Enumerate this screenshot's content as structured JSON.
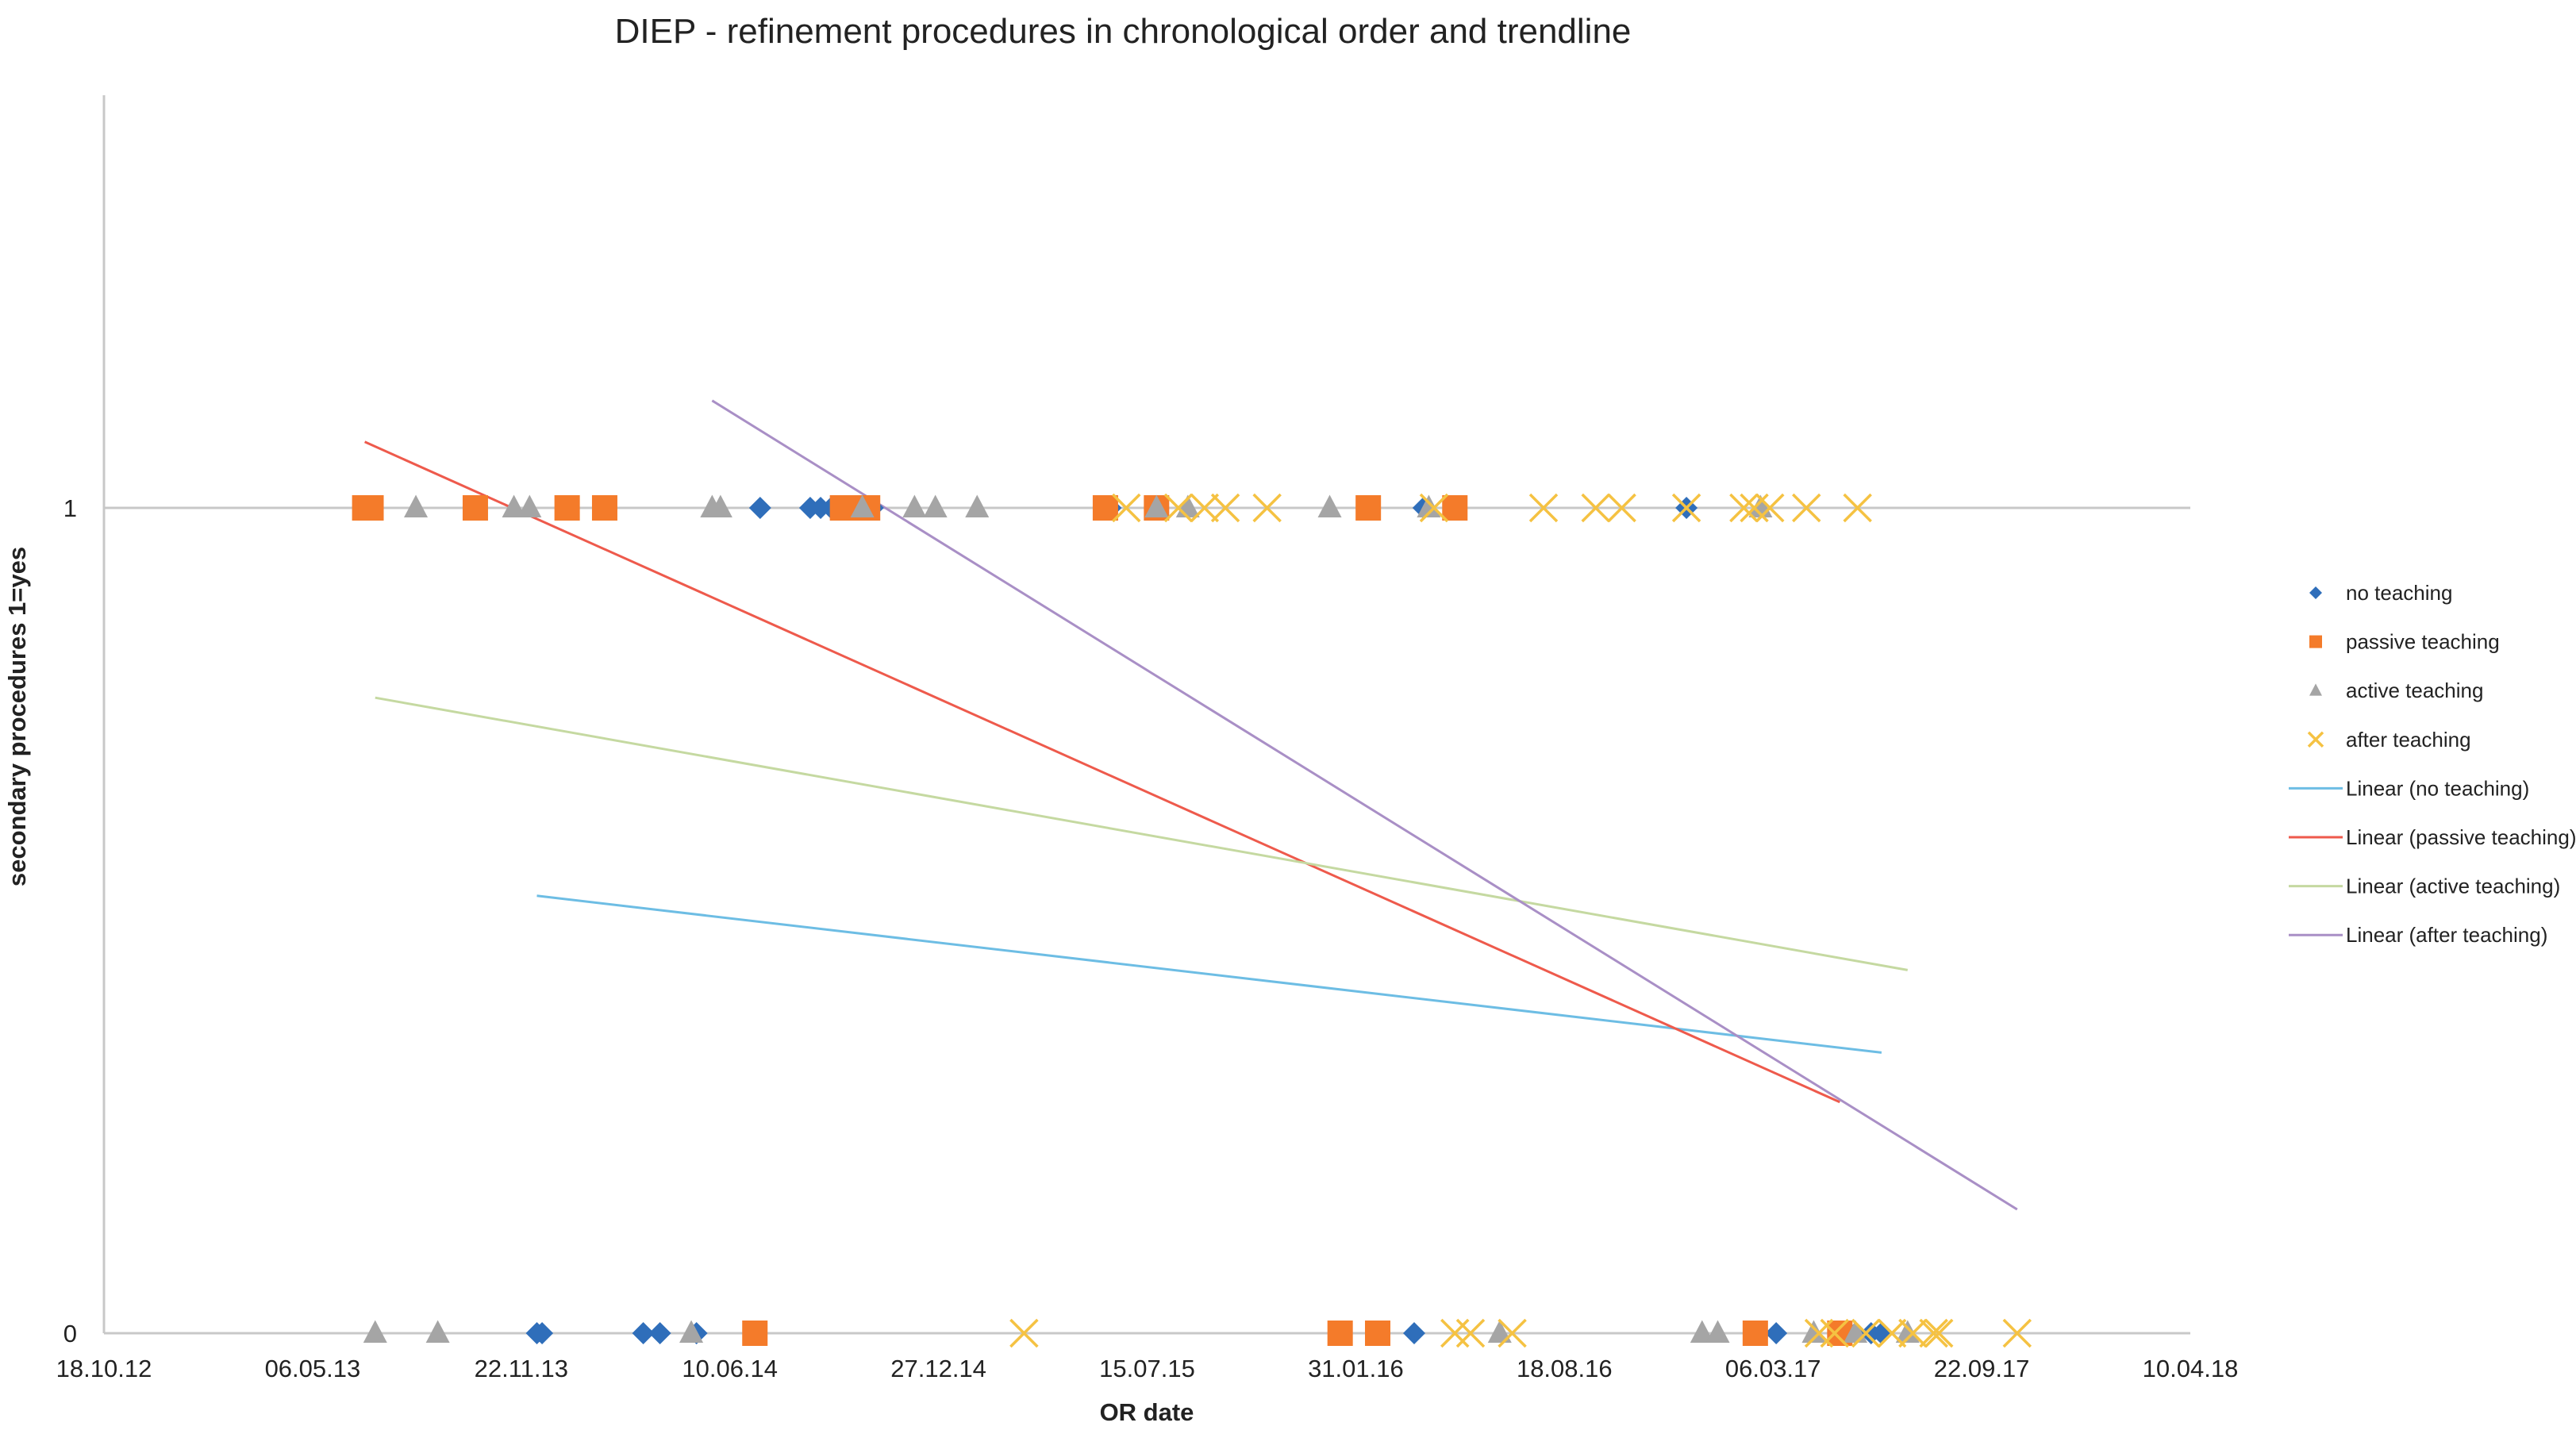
{
  "chart_data": {
    "type": "scatter",
    "title": "DIEP - refinement procedures in chronological order and trendline",
    "xlabel": "OR date",
    "ylabel": "secondary procedures 1=yes",
    "x_ticks": [
      "18.10.12",
      "06.05.13",
      "22.11.13",
      "10.06.14",
      "27.12.14",
      "15.07.15",
      "31.01.16",
      "18.08.16",
      "06.03.17",
      "22.09.17",
      "10.04.18"
    ],
    "y_ticks": [
      "0",
      "1"
    ],
    "xlim": [
      "2012-10-18",
      "2018-04-10"
    ],
    "ylim": [
      0,
      1
    ],
    "grid": "horizontal",
    "legend_position": "right",
    "series": [
      {
        "name": "no teaching",
        "marker": "diamond",
        "color": "#2f6eba",
        "points": [
          {
            "x": "2014-07-09",
            "y": 1
          },
          {
            "x": "2014-08-26",
            "y": 1
          },
          {
            "x": "2014-09-05",
            "y": 1
          },
          {
            "x": "2014-09-15",
            "y": 1
          },
          {
            "x": "2014-10-25",
            "y": 1
          },
          {
            "x": "2015-06-10",
            "y": 1
          },
          {
            "x": "2016-04-05",
            "y": 1
          },
          {
            "x": "2016-12-13",
            "y": 1
          },
          {
            "x": "2013-12-07",
            "y": 0
          },
          {
            "x": "2013-12-12",
            "y": 0
          },
          {
            "x": "2014-03-19",
            "y": 0
          },
          {
            "x": "2014-04-04",
            "y": 0
          },
          {
            "x": "2014-05-09",
            "y": 0
          },
          {
            "x": "2016-03-27",
            "y": 0
          },
          {
            "x": "2017-03-09",
            "y": 0
          },
          {
            "x": "2017-05-24",
            "y": 0
          },
          {
            "x": "2017-06-08",
            "y": 0
          },
          {
            "x": "2017-06-18",
            "y": 0
          }
        ]
      },
      {
        "name": "passive teaching",
        "marker": "square",
        "color": "#f47b2a",
        "points": [
          {
            "x": "2013-06-25",
            "y": 1
          },
          {
            "x": "2013-07-01",
            "y": 1
          },
          {
            "x": "2013-10-09",
            "y": 1
          },
          {
            "x": "2014-01-05",
            "y": 1
          },
          {
            "x": "2014-02-10",
            "y": 1
          },
          {
            "x": "2014-09-26",
            "y": 1
          },
          {
            "x": "2014-10-20",
            "y": 1
          },
          {
            "x": "2015-06-05",
            "y": 1
          },
          {
            "x": "2015-07-24",
            "y": 1
          },
          {
            "x": "2016-02-12",
            "y": 1
          },
          {
            "x": "2016-05-05",
            "y": 1
          },
          {
            "x": "2014-07-04",
            "y": 0
          },
          {
            "x": "2016-01-16",
            "y": 0
          },
          {
            "x": "2016-02-21",
            "y": 0
          },
          {
            "x": "2017-02-17",
            "y": 0
          },
          {
            "x": "2017-05-09",
            "y": 0
          }
        ]
      },
      {
        "name": "active teaching",
        "marker": "triangle",
        "color": "#a5a5a5",
        "points": [
          {
            "x": "2013-08-13",
            "y": 1
          },
          {
            "x": "2013-11-15",
            "y": 1
          },
          {
            "x": "2013-11-30",
            "y": 1
          },
          {
            "x": "2014-05-24",
            "y": 1
          },
          {
            "x": "2014-06-01",
            "y": 1
          },
          {
            "x": "2014-10-15",
            "y": 1
          },
          {
            "x": "2014-12-04",
            "y": 1
          },
          {
            "x": "2014-12-24",
            "y": 1
          },
          {
            "x": "2015-02-02",
            "y": 1
          },
          {
            "x": "2015-07-24",
            "y": 1
          },
          {
            "x": "2015-08-23",
            "y": 1
          },
          {
            "x": "2016-01-06",
            "y": 1
          },
          {
            "x": "2016-04-10",
            "y": 1
          },
          {
            "x": "2017-02-22",
            "y": 1
          },
          {
            "x": "2013-07-05",
            "y": 0
          },
          {
            "x": "2013-09-03",
            "y": 0
          },
          {
            "x": "2014-05-04",
            "y": 0
          },
          {
            "x": "2016-06-17",
            "y": 0
          },
          {
            "x": "2016-12-28",
            "y": 0
          },
          {
            "x": "2017-01-12",
            "y": 0
          },
          {
            "x": "2017-04-14",
            "y": 0
          },
          {
            "x": "2017-05-24",
            "y": 0
          },
          {
            "x": "2017-07-13",
            "y": 0
          }
        ]
      },
      {
        "name": "after teaching",
        "marker": "x",
        "color": "#f5c242",
        "points": [
          {
            "x": "2015-06-25",
            "y": 1
          },
          {
            "x": "2015-08-14",
            "y": 1
          },
          {
            "x": "2015-09-08",
            "y": 1
          },
          {
            "x": "2015-09-28",
            "y": 1
          },
          {
            "x": "2015-11-07",
            "y": 1
          },
          {
            "x": "2016-04-15",
            "y": 1
          },
          {
            "x": "2016-07-29",
            "y": 1
          },
          {
            "x": "2016-09-17",
            "y": 1
          },
          {
            "x": "2016-10-12",
            "y": 1
          },
          {
            "x": "2016-12-13",
            "y": 1
          },
          {
            "x": "2017-02-06",
            "y": 1
          },
          {
            "x": "2017-02-16",
            "y": 1
          },
          {
            "x": "2017-03-03",
            "y": 1
          },
          {
            "x": "2017-04-07",
            "y": 1
          },
          {
            "x": "2017-05-26",
            "y": 1
          },
          {
            "x": "2015-03-19",
            "y": 0
          },
          {
            "x": "2016-05-05",
            "y": 0
          },
          {
            "x": "2016-05-20",
            "y": 0
          },
          {
            "x": "2016-06-29",
            "y": 0
          },
          {
            "x": "2017-04-19",
            "y": 0
          },
          {
            "x": "2017-05-04",
            "y": 0
          },
          {
            "x": "2017-06-03",
            "y": 0
          },
          {
            "x": "2017-06-28",
            "y": 0
          },
          {
            "x": "2017-07-18",
            "y": 0
          },
          {
            "x": "2017-08-07",
            "y": 0
          },
          {
            "x": "2017-08-12",
            "y": 0
          },
          {
            "x": "2017-10-26",
            "y": 0
          }
        ]
      }
    ],
    "trendlines": [
      {
        "name": "Linear  (no teaching)",
        "color": "#6dbde4",
        "start": {
          "x": "2013-12-07",
          "y": 0.53
        },
        "end": {
          "x": "2017-06-18",
          "y": 0.34
        }
      },
      {
        "name": "Linear  (passive teaching)",
        "color": "#ee5a4c",
        "start": {
          "x": "2013-06-25",
          "y": 1.08
        },
        "end": {
          "x": "2017-05-09",
          "y": 0.28
        }
      },
      {
        "name": "Linear  (active teaching)",
        "color": "#c5d9a1",
        "start": {
          "x": "2013-07-05",
          "y": 0.77
        },
        "end": {
          "x": "2017-07-13",
          "y": 0.44
        }
      },
      {
        "name": "Linear  (after teaching)",
        "color": "#a98fc6",
        "start": {
          "x": "2014-05-24",
          "y": 1.13
        },
        "end": {
          "x": "2017-10-26",
          "y": 0.15
        }
      }
    ]
  }
}
